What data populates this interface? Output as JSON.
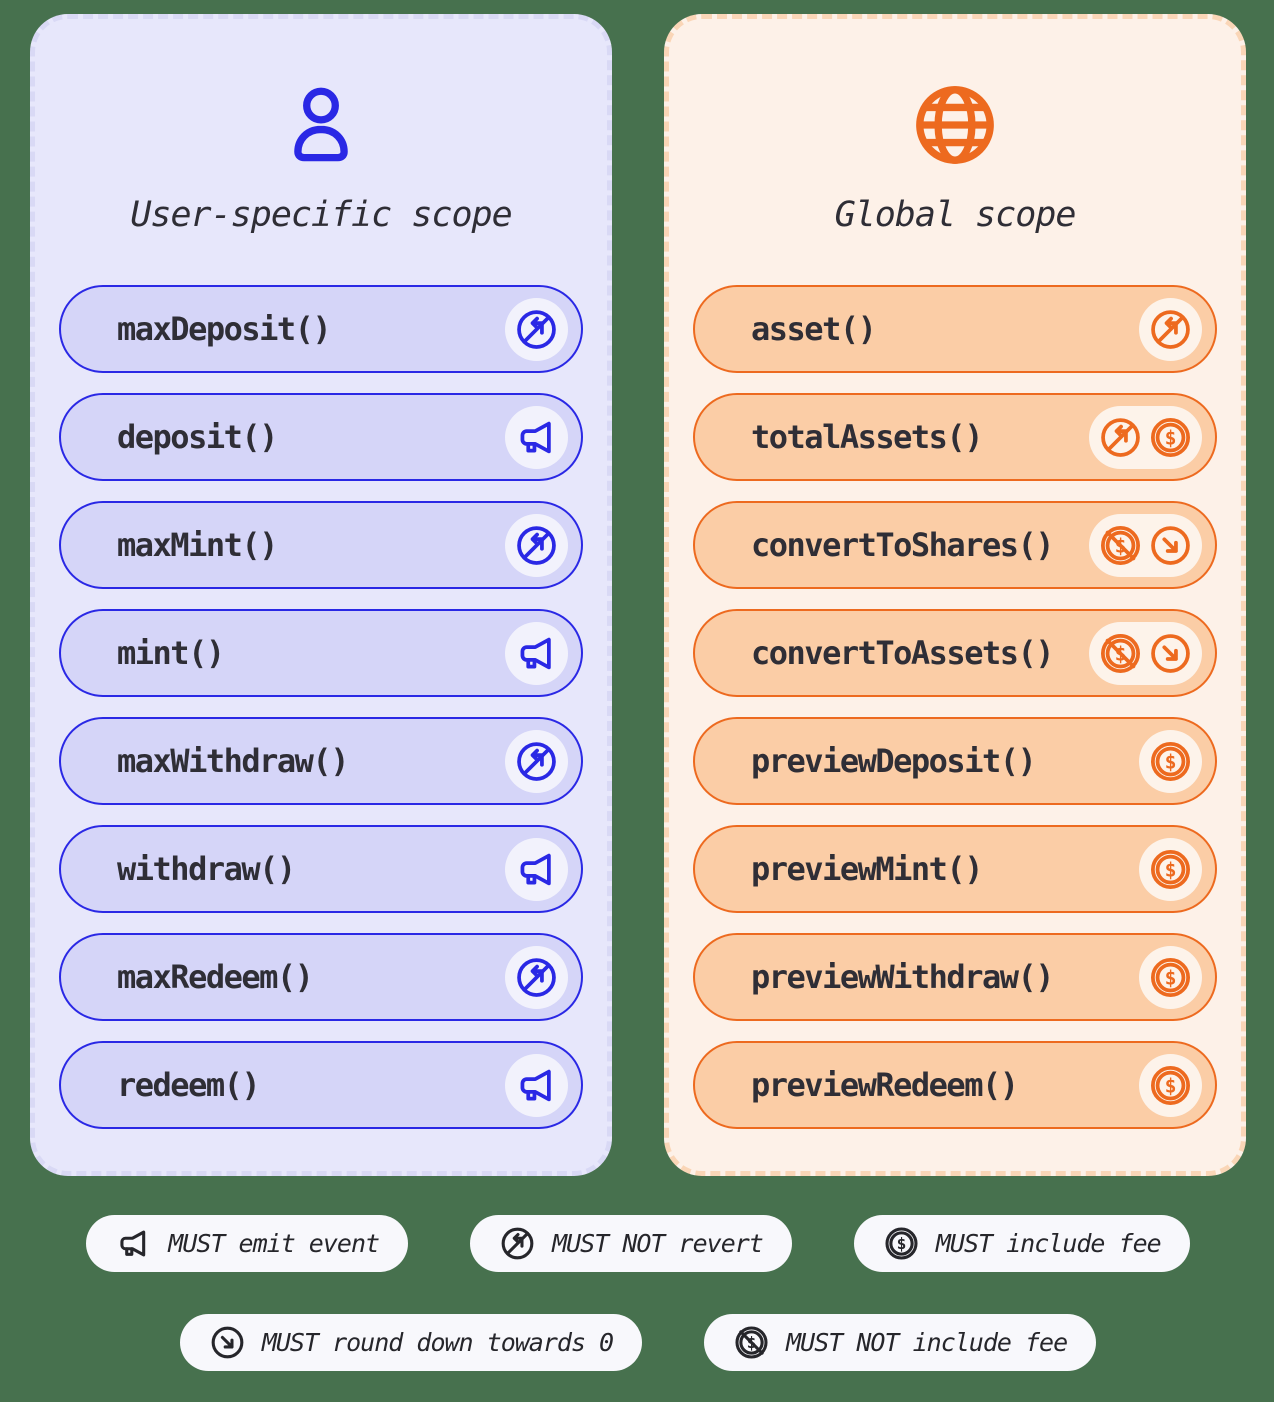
{
  "colors": {
    "page-bg": "#47714E",
    "blue": "#2A28E5",
    "blue-panel-bg": "#E7E7FB",
    "blue-panel-dash": "#D9D9F5",
    "blue-pill-bg": "#D5D5F8",
    "blue-chip-bg": "#F2F2FC",
    "orange": "#ED6A1F",
    "orange-panel-bg": "#FDF1E8",
    "orange-panel-dash": "#FAD6B7",
    "orange-pill-bg": "#FBCDA6",
    "orange-chip-bg": "#FDF3EA",
    "text-dark": "#2F2E36",
    "legend-pill-bg": "#F8F8FC",
    "legend-text": "#26262B"
  },
  "panels": [
    {
      "title": "User-specific scope",
      "icon": "person",
      "functions": [
        {
          "label": "maxDeposit()",
          "icons": [
            "no-revert"
          ]
        },
        {
          "label": "deposit()",
          "icons": [
            "emit-event"
          ]
        },
        {
          "label": "maxMint()",
          "icons": [
            "no-revert"
          ]
        },
        {
          "label": "mint()",
          "icons": [
            "emit-event"
          ]
        },
        {
          "label": "maxWithdraw()",
          "icons": [
            "no-revert"
          ]
        },
        {
          "label": "withdraw()",
          "icons": [
            "emit-event"
          ]
        },
        {
          "label": "maxRedeem()",
          "icons": [
            "no-revert"
          ]
        },
        {
          "label": "redeem()",
          "icons": [
            "emit-event"
          ]
        }
      ]
    },
    {
      "title": "Global scope",
      "icon": "globe",
      "functions": [
        {
          "label": "asset()",
          "icons": [
            "no-revert"
          ]
        },
        {
          "label": "totalAssets()",
          "icons": [
            "no-revert",
            "include-fee"
          ]
        },
        {
          "label": "convertToShares()",
          "icons": [
            "no-fee",
            "round-down"
          ]
        },
        {
          "label": "convertToAssets()",
          "icons": [
            "no-fee",
            "round-down"
          ]
        },
        {
          "label": "previewDeposit()",
          "icons": [
            "include-fee"
          ]
        },
        {
          "label": "previewMint()",
          "icons": [
            "include-fee"
          ]
        },
        {
          "label": "previewWithdraw()",
          "icons": [
            "include-fee"
          ]
        },
        {
          "label": "previewRedeem()",
          "icons": [
            "include-fee"
          ]
        }
      ]
    }
  ],
  "legend": {
    "rows": [
      [
        {
          "icon": "emit-event",
          "label": "MUST emit event"
        },
        {
          "icon": "no-revert",
          "label": "MUST NOT revert"
        },
        {
          "icon": "include-fee",
          "label": "MUST include fee"
        }
      ],
      [
        {
          "icon": "round-down",
          "label": "MUST round down towards 0"
        },
        {
          "icon": "no-fee",
          "label": "MUST NOT include fee"
        }
      ]
    ]
  },
  "icon_names": {
    "person": "person-icon",
    "globe": "globe-icon",
    "emit-event": "megaphone-icon",
    "no-revert": "no-revert-icon",
    "include-fee": "dollar-coin-icon",
    "no-fee": "crossed-dollar-coin-icon",
    "round-down": "round-down-arrow-icon"
  }
}
